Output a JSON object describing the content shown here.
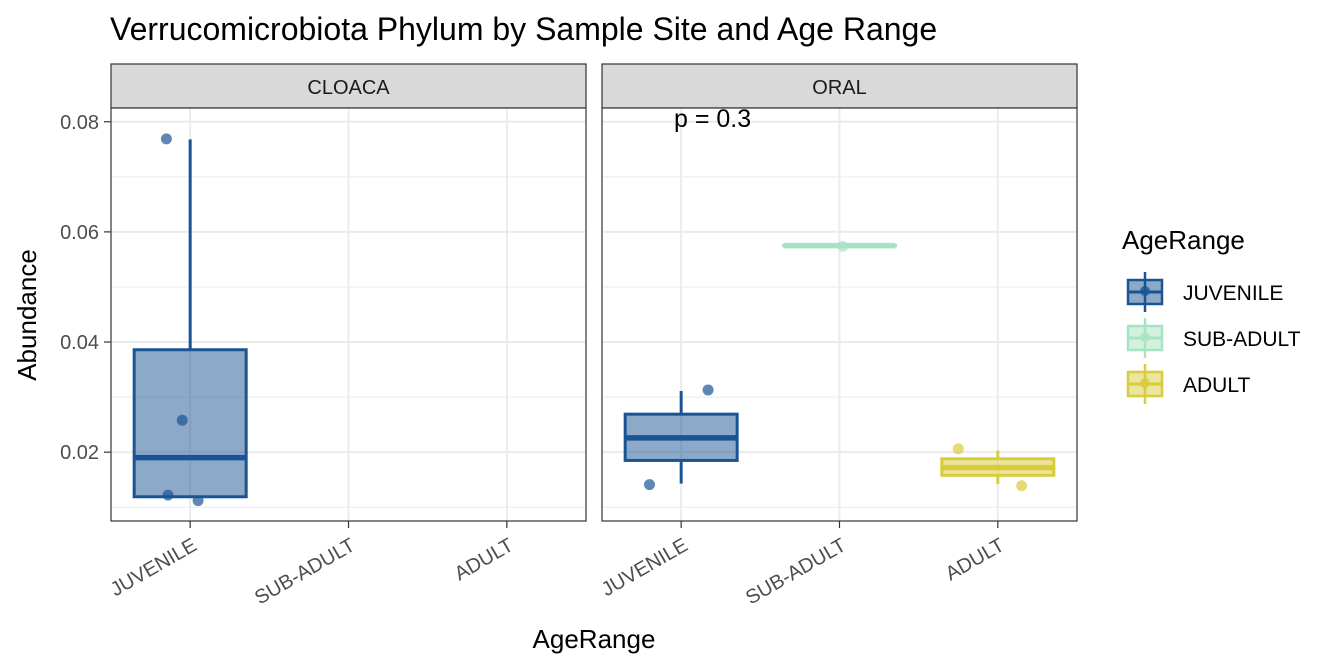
{
  "chart_data": {
    "type": "box",
    "title": "Verrucomicrobiota Phylum by Sample Site and Age Range",
    "xlabel": "AgeRange",
    "ylabel": "Abundance",
    "ylim": [
      0.0075,
      0.0825
    ],
    "y_ticks": [
      "0.02",
      "0.04",
      "0.06",
      "0.08"
    ],
    "y_tick_values": [
      0.02,
      0.04,
      0.06,
      0.08
    ],
    "categories": [
      "JUVENILE",
      "SUB-ADULT",
      "ADULT"
    ],
    "grid": true,
    "legend": {
      "title": "AgeRange",
      "position": "right",
      "items": [
        {
          "label": "JUVENILE",
          "color": "#1a5493"
        },
        {
          "label": "SUB-ADULT",
          "color": "#a6e3c2"
        },
        {
          "label": "ADULT",
          "color": "#d8cc3c"
        }
      ]
    },
    "panels": [
      {
        "label": "CLOACA",
        "annotation": "",
        "groups": [
          {
            "category": "JUVENILE",
            "q1": 0.0119,
            "median": 0.019,
            "q3": 0.0386,
            "whisker_low": 0.0119,
            "whisker_high": 0.0768,
            "points": [
              [
                -0.15,
                0.0769
              ],
              [
                -0.05,
                0.0258
              ],
              [
                -0.14,
                0.0122
              ],
              [
                0.05,
                0.0112
              ]
            ]
          }
        ]
      },
      {
        "label": "ORAL",
        "annotation": "p = 0.3",
        "groups": [
          {
            "category": "JUVENILE",
            "q1": 0.0185,
            "median": 0.0226,
            "q3": 0.0269,
            "whisker_low": 0.0143,
            "whisker_high": 0.0311,
            "points": [
              [
                -0.2,
                0.0141
              ],
              [
                0.17,
                0.0313
              ]
            ]
          },
          {
            "category": "SUB-ADULT",
            "q1": 0.0575,
            "median": 0.0575,
            "q3": 0.0575,
            "whisker_low": 0.0575,
            "whisker_high": 0.0575,
            "points": [
              [
                0.02,
                0.0574
              ]
            ]
          },
          {
            "category": "ADULT",
            "q1": 0.0158,
            "median": 0.0172,
            "q3": 0.0188,
            "whisker_low": 0.0142,
            "whisker_high": 0.0203,
            "points": [
              [
                -0.25,
                0.0206
              ],
              [
                0.15,
                0.0139
              ]
            ]
          }
        ]
      }
    ]
  }
}
